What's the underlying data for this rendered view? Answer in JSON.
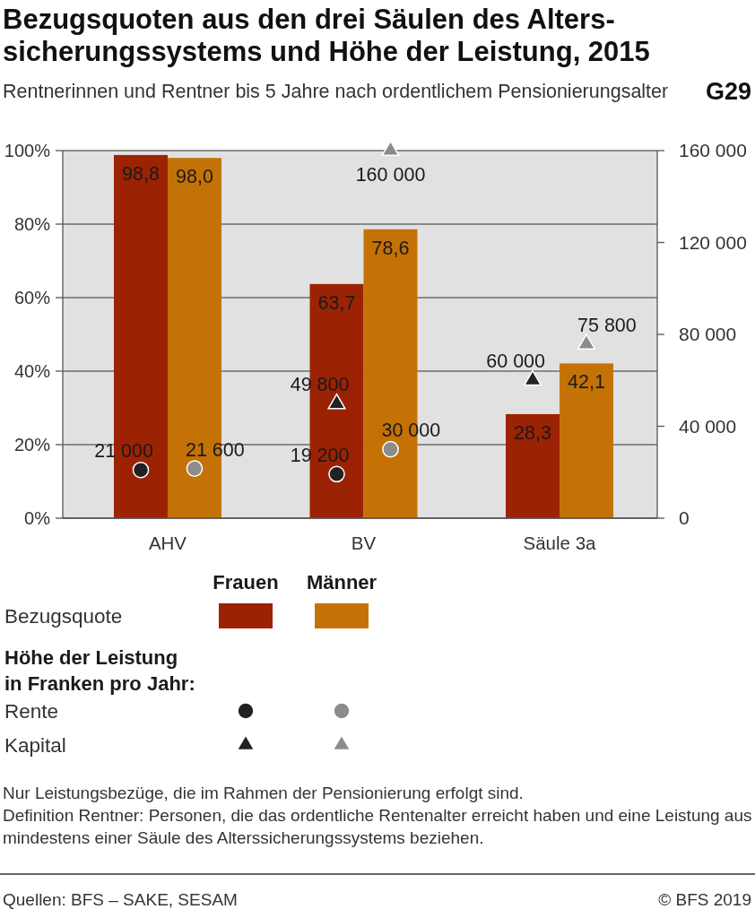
{
  "chart_data": {
    "type": "bar",
    "title": "Bezugsquoten aus den drei Säulen des Alters-\nsicherungssystems und Höhe der Leistung, 2015",
    "subtitle": "Rentnerinnen und Rentner bis 5 Jahre nach ordentlichem Pensionierungsalter",
    "legend_title": "Höhe der Leistung\nin Franken pro Jahr:",
    "categories": [
      "AHV",
      "BV",
      "Säule 3a"
    ],
    "series": [
      {
        "color": "#9c2204",
        "values": [
          98.8,
          63.7,
          28.3
        ],
        "value_labels": [
          "98,8",
          "63,7",
          "28,3"
        ]
      },
      {
        "color": "#c47206",
        "values": [
          98.0,
          78.6,
          42.1
        ],
        "value_labels": [
          "98,0",
          "78,6",
          "42,1"
        ]
      },
      {
        "type": "scatter",
        "axis": "y2",
        "marker": "circle",
        "color": "#222222",
        "x": [
          "AHV",
          "BV"
        ],
        "values": [
          21000,
          19200
        ],
        "value_labels": [
          "21 000",
          "19 200"
        ]
      },
      {
        "type": "scatter",
        "axis": "y2",
        "marker": "circle",
        "color": "#8c8c8c",
        "x": [
          "AHV",
          "BV"
        ],
        "values": [
          21600,
          30000
        ],
        "value_labels": [
          "21 600",
          "30 000"
        ]
      },
      {
        "type": "scatter",
        "axis": "y2",
        "marker": "triangle",
        "color": "#222222",
        "x": [
          "BV",
          "Säule 3a"
        ],
        "values": [
          49800,
          60000
        ],
        "value_labels": [
          "49 800",
          "60 000"
        ]
      },
      {
        "type": "scatter",
        "axis": "y2",
        "marker": "triangle",
        "color": "#8c8c8c",
        "x": [
          "BV",
          "Säule 3a"
        ],
        "values": [
          160000,
          75800
        ],
        "value_labels": [
          "160 000",
          "75 800"
        ]
      }
    ],
    "ylim": [
      0,
      100
    ],
    "yticks": [
      {
        "value": 0,
        "label": "0%"
      },
      {
        "value": 20,
        "label": "20%"
      },
      {
        "value": 40,
        "label": "40%"
      },
      {
        "value": 60,
        "label": "60%"
      },
      {
        "value": 80,
        "label": "80%"
      },
      {
        "value": 100,
        "label": "100%"
      }
    ],
    "y2lim": [
      0,
      160000
    ],
    "y2ticks": [
      0,
      {
        "value": 40000,
        "label": "40 000"
      },
      {
        "value": 80000,
        "label": "80 000"
      },
      {
        "value": 120000,
        "label": "120 000"
      },
      {
        "value": 160000,
        "label": "160 000"
      }
    ],
    "grid": "y",
    "annotations": [
      "G29",
      "Frauen",
      "Männer",
      "Bezugsquote",
      "Rente",
      "Kapital",
      "Nur Leistungsbezüge, die im Rahmen der Pensionierung erfolgt sind.",
      "Definition Rentner: Personen, die das ordentliche Rentenalter erreicht haben und eine Leistung aus mindestens einer Säule des Alterssicherungssystems beziehen.",
      "Quellen: BFS – SAKE, SESAM",
      "© BFS 2019"
    ]
  }
}
